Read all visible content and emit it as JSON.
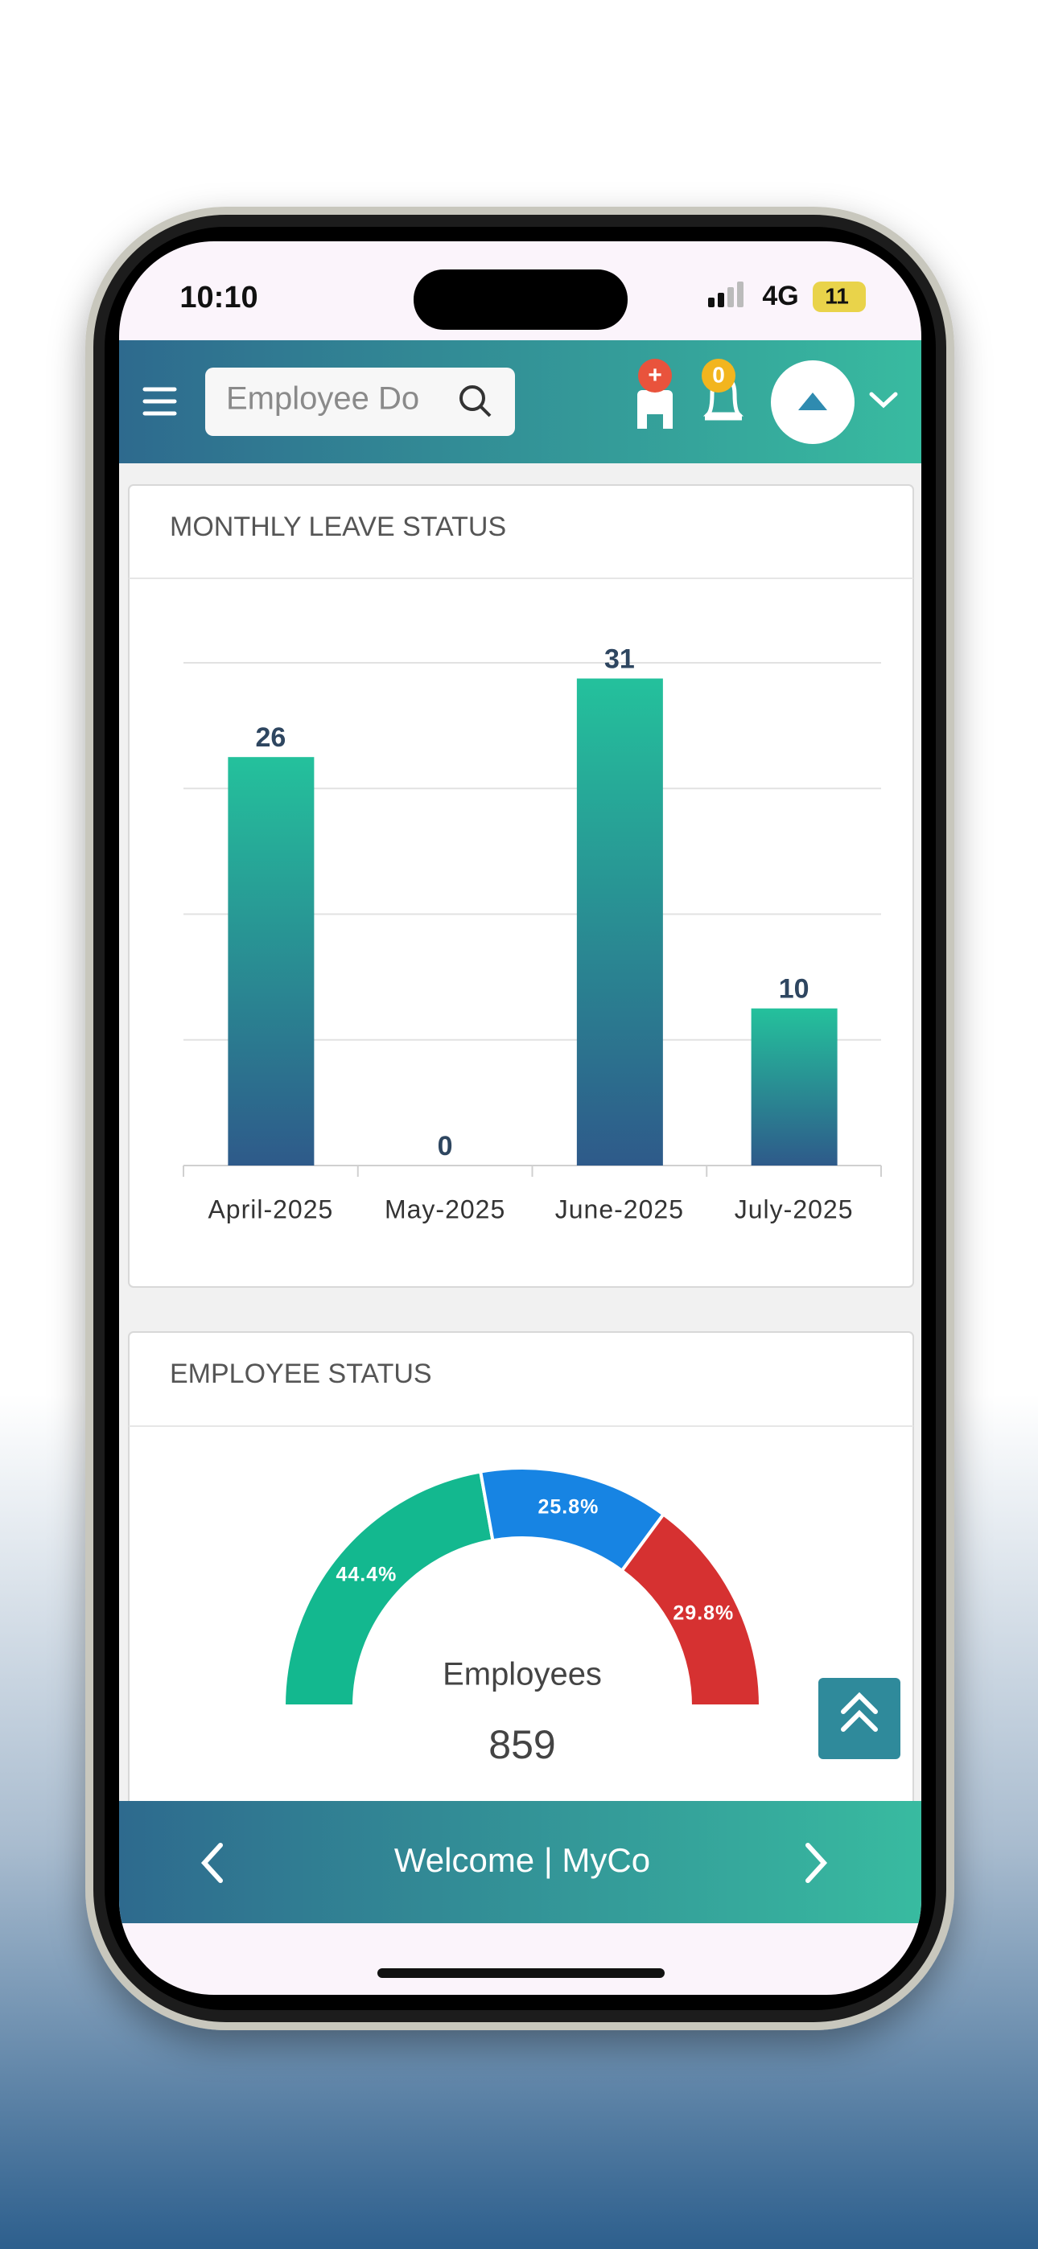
{
  "status_bar": {
    "time": "10:10",
    "network": "4G",
    "battery": "11"
  },
  "header": {
    "search_placeholder": "Employee Do",
    "request_badge": "+",
    "notification_badge": "0"
  },
  "chart_data": [
    {
      "type": "bar",
      "title": "MONTHLY LEAVE STATUS",
      "categories": [
        "April-2025",
        "May-2025",
        "June-2025",
        "July-2025"
      ],
      "values": [
        26,
        0,
        31,
        10
      ],
      "ylim": [
        0,
        32
      ],
      "yticks": [
        0,
        8,
        16,
        24,
        32
      ],
      "grid": true,
      "color_top": "#24c19c",
      "color_bottom": "#2e5a8a"
    },
    {
      "type": "half-doughnut",
      "title": "EMPLOYEE STATUS",
      "values": [
        44.4,
        25.8,
        29.8
      ],
      "value_labels": [
        "44.4%",
        "25.8%",
        "29.8%"
      ],
      "colors": [
        "#13b88f",
        "#1784e3",
        "#d63131"
      ],
      "center_label": "Employees",
      "center_value": 859
    }
  ],
  "footer": {
    "text": "Welcome | MyCo"
  }
}
